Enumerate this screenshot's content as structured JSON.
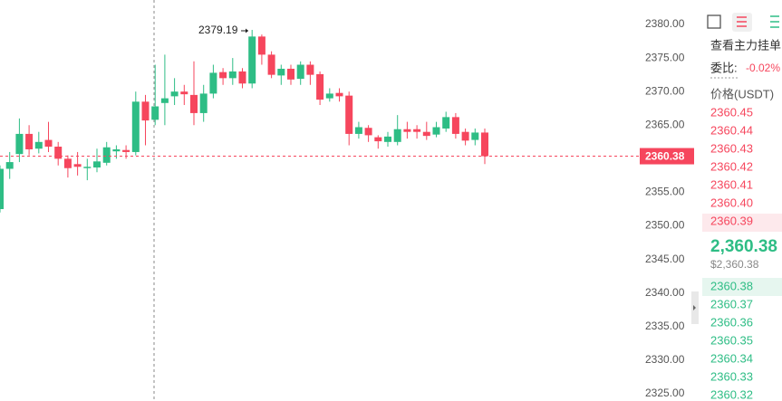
{
  "chart_data": {
    "type": "candlestick",
    "series": [
      {
        "color_up": "#2ebd85",
        "color_down": "#f6465d",
        "open": [
          2352.5,
          2358.5,
          2360.7,
          2363.7,
          2361.5,
          2362.8,
          2361.8,
          2360,
          2359.2,
          2358.6,
          2358.7,
          2359.4,
          2361.1,
          2361.3,
          2361,
          2368.5,
          2365.8,
          2368.3,
          2369.3,
          2370,
          2369.5,
          2366.8,
          2369.7,
          2372.9,
          2372,
          2373,
          2371.2,
          2378.2,
          2375.5,
          2372.4,
          2373.4,
          2371.9,
          2374,
          2372.6,
          2369,
          2369.8,
          2369.4,
          2363.7,
          2364.6,
          2363.2,
          2362.5,
          2362.5,
          2364.4,
          2364.4,
          2364,
          2363.6,
          2364.5,
          2366.2,
          2364,
          2362.8,
          2363.9
        ],
        "high": [
          2359,
          2361,
          2366,
          2365,
          2364,
          2365.5,
          2362.5,
          2360.5,
          2361,
          2360,
          2361.5,
          2362.5,
          2362,
          2362,
          2370,
          2369.5,
          2374,
          2375.5,
          2372,
          2371,
          2374.5,
          2371,
          2374,
          2373.5,
          2375,
          2373.5,
          2379.19,
          2378.5,
          2376,
          2374,
          2374,
          2374.5,
          2374.5,
          2373,
          2370.5,
          2370.5,
          2370,
          2365.5,
          2365,
          2363.5,
          2364,
          2366.5,
          2365.5,
          2365,
          2365.5,
          2365.5,
          2367,
          2366.8,
          2364.5,
          2364.5,
          2364.5
        ],
        "low": [
          2352,
          2357,
          2359.5,
          2360.5,
          2360.8,
          2361,
          2359,
          2357.2,
          2357.5,
          2356.8,
          2358,
          2359,
          2360,
          2360,
          2360.5,
          2362,
          2365,
          2365,
          2368,
          2368,
          2365,
          2365.5,
          2369,
          2371,
          2371,
          2370.5,
          2370.5,
          2374,
          2372,
          2371,
          2371,
          2371,
          2371,
          2368,
          2368.5,
          2368.5,
          2362,
          2363,
          2362.5,
          2361.5,
          2361.8,
          2362,
          2363,
          2363,
          2362.8,
          2363.2,
          2364,
          2363,
          2362,
          2362,
          2359.2
        ],
        "close": [
          2358.5,
          2359.5,
          2363.7,
          2361.4,
          2362.5,
          2361.8,
          2360,
          2358.6,
          2358.8,
          2358.8,
          2359.6,
          2361.7,
          2361.4,
          2361,
          2368.5,
          2365.7,
          2367.8,
          2369,
          2370,
          2369.6,
          2366.8,
          2369.7,
          2372.8,
          2372,
          2373,
          2371.2,
          2378.2,
          2375.5,
          2372.5,
          2373.4,
          2371.8,
          2374,
          2372.5,
          2368.8,
          2369.7,
          2369.3,
          2363.7,
          2364.7,
          2363.5,
          2362.6,
          2363.3,
          2364.4,
          2364,
          2364,
          2363.4,
          2364.7,
          2366.2,
          2363.7,
          2362.7,
          2363.9,
          2360.38
        ]
      }
    ],
    "ylim": [
      2325,
      2380
    ],
    "yticks": [
      {
        "value": 2325,
        "label": "2325.00"
      },
      {
        "value": 2330,
        "label": "2330.00"
      },
      {
        "value": 2335,
        "label": "2335.00"
      },
      {
        "value": 2340,
        "label": "2340.00"
      },
      {
        "value": 2345,
        "label": "2345.00"
      },
      {
        "value": 2350,
        "label": "2350.00"
      },
      {
        "value": 2355,
        "label": "2355.00"
      },
      {
        "value": 2360,
        "label": "2360.00"
      },
      {
        "value": 2365,
        "label": "2365.00"
      },
      {
        "value": 2370,
        "label": "2370.00"
      },
      {
        "value": 2375,
        "label": "2375.00"
      },
      {
        "value": 2380,
        "label": "2380.00"
      }
    ],
    "annotation": {
      "value": 2379.19,
      "label": "2379.19"
    },
    "last_price": {
      "value": 2360.38,
      "label": "2360.38"
    }
  },
  "order_book": {
    "link": "查看主力挂单",
    "ratio_label": "委比:",
    "ratio": "-0.02%",
    "price_header": "价格(USDT)",
    "asks": [
      "2360.45",
      "2360.44",
      "2360.43",
      "2360.42",
      "2360.41",
      "2360.40",
      "2360.39"
    ],
    "last": "2,360.38",
    "last_usd": "$2,360.38",
    "bids": [
      "2360.38",
      "2360.37",
      "2360.36",
      "2360.35",
      "2360.34",
      "2360.33",
      "2360.32"
    ]
  }
}
